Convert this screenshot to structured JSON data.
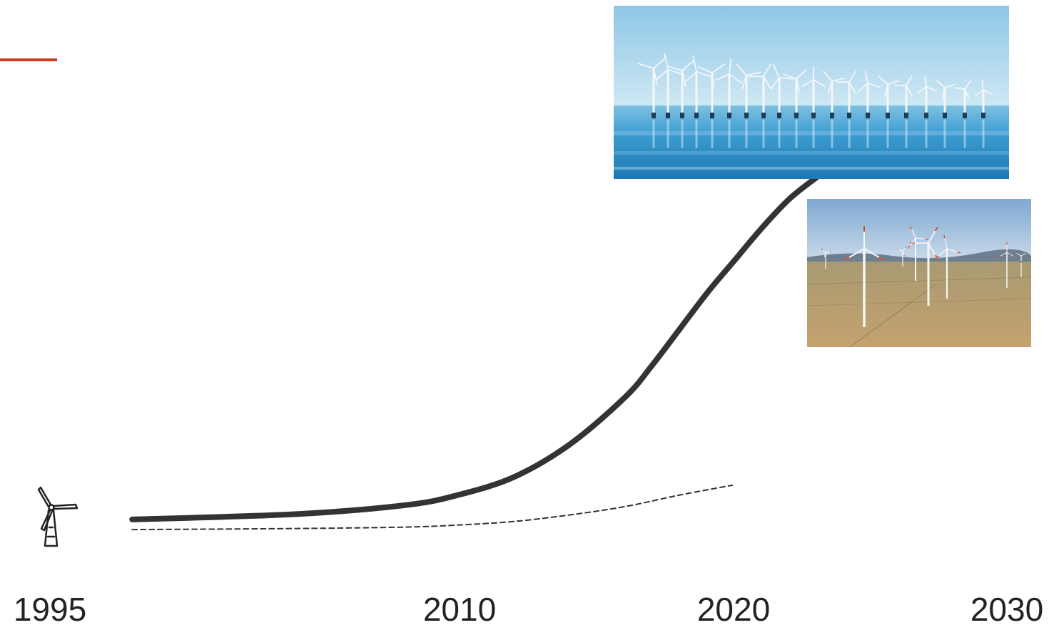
{
  "accent_line": {
    "color": "#d23a1e"
  },
  "chart_data": {
    "type": "line",
    "title": "",
    "xlabel": "",
    "ylabel": "",
    "x_ticks": [
      "1995",
      "2010",
      "2020",
      "2030"
    ],
    "xlim": [
      1995,
      2030
    ],
    "ylim": [
      0,
      100
    ],
    "grid": false,
    "series": [
      {
        "style": "solid",
        "color": "#333333",
        "x": [
          1998,
          2004,
          2008,
          2010,
          2012,
          2014,
          2016,
          2017,
          2018,
          2019,
          2020,
          2021,
          2022,
          2023
        ],
        "y": [
          1,
          2.5,
          5,
          8,
          13,
          22,
          35,
          44,
          54,
          64,
          73,
          82,
          90,
          96
        ]
      },
      {
        "style": "dashed",
        "color": "#333333",
        "x": [
          1998,
          2004,
          2008,
          2010,
          2012,
          2014,
          2016,
          2018,
          2019.9
        ],
        "y": [
          -1.8,
          -1.5,
          -1.1,
          -0.5,
          0.5,
          2.3,
          4.6,
          7.8,
          10.5
        ]
      }
    ]
  },
  "icons": {
    "turbine": "wind-turbine-icon",
    "offshore_photo": "offshore-wind-farm-photo",
    "onshore_photo": "onshore-wind-farm-photo"
  },
  "colors": {
    "sky_offshore": "#8ec7e6",
    "sea": "#2f8fc4",
    "sky_onshore": "#8fb4d6",
    "field": "#b79a6c",
    "turbine": "#f4f6f8",
    "blade_tip": "#d9472b"
  }
}
